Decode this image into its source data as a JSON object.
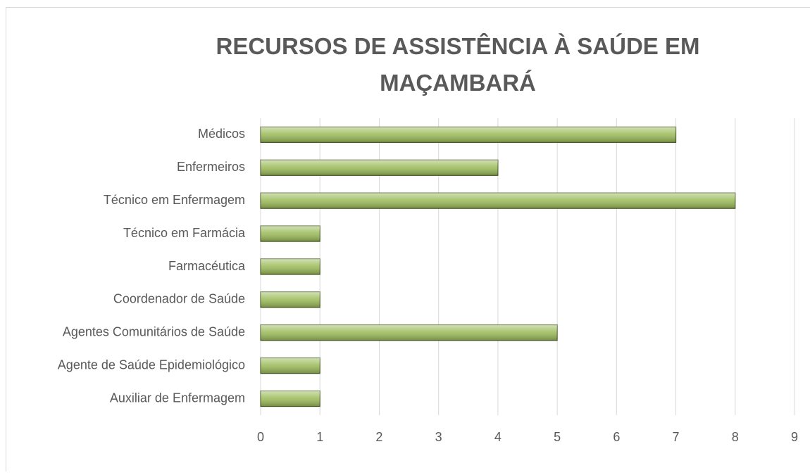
{
  "chart_data": {
    "type": "bar",
    "orientation": "horizontal",
    "title": "RECURSOS DE ASSISTÊNCIA À SAÚDE EM MAÇAMBARÁ",
    "categories": [
      "Médicos",
      "Enfermeiros",
      "Técnico em Enfermagem",
      "Técnico em Farmácia",
      "Farmacéutica",
      "Coordenador de Saúde",
      "Agentes Comunitários de Saúde",
      "Agente de Saúde Epidemiológico",
      "Auxiliar de Enfermagem"
    ],
    "values": [
      7,
      4,
      8,
      1,
      1,
      1,
      5,
      1,
      1
    ],
    "color": "#9bbb59",
    "xlim": [
      0,
      9
    ],
    "xticks": [
      0,
      1,
      2,
      3,
      4,
      5,
      6,
      7,
      8,
      9
    ],
    "grid": true
  }
}
